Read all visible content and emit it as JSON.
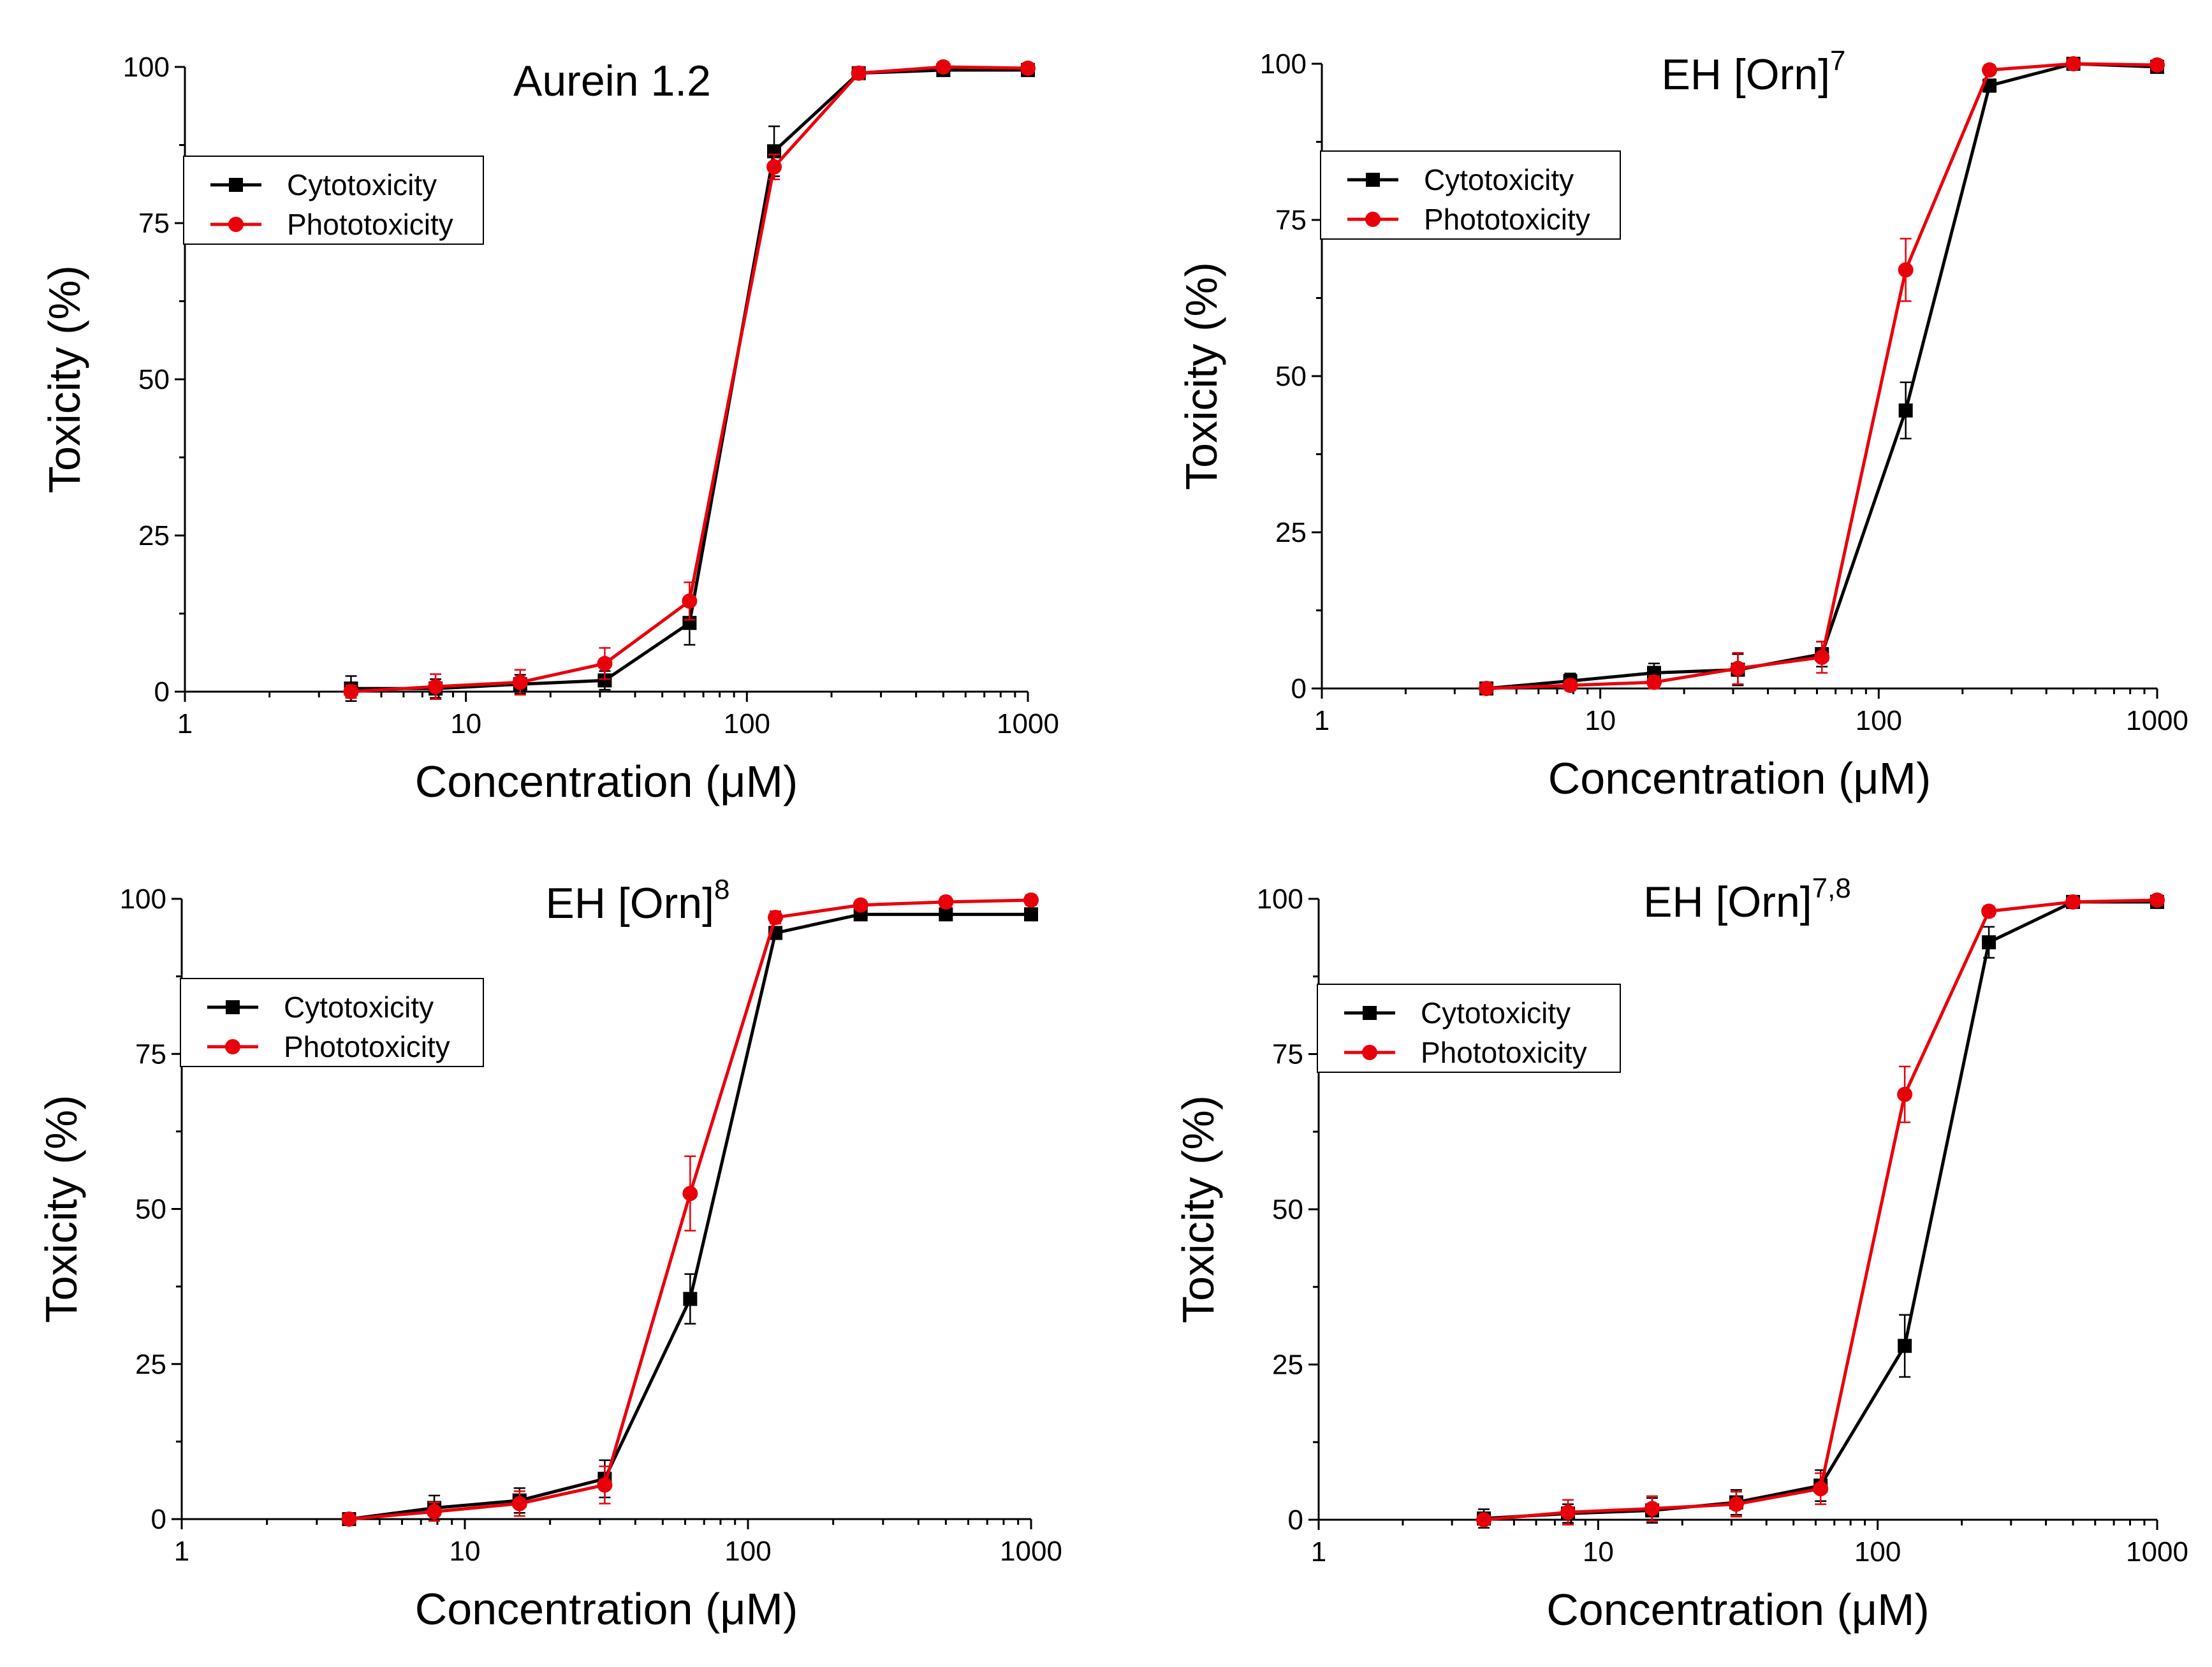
{
  "colors": {
    "cytotoxicity": "#000000",
    "phototoxicity": "#e8000b"
  },
  "chart_data": [
    {
      "type": "line",
      "title": "Aurein 1.2",
      "title_sup": "",
      "xlabel": "Concentration (μM)",
      "ylabel": "Toxicity (%)",
      "xscale": "log",
      "xlim": [
        1,
        1000
      ],
      "ylim": [
        0,
        100
      ],
      "xticks": [
        1,
        10,
        100,
        1000
      ],
      "xtick_labels": [
        "1",
        "10",
        "100",
        "1000"
      ],
      "yticks": [
        0,
        25,
        50,
        75,
        100
      ],
      "ytick_labels": [
        "0",
        "25",
        "50",
        "75",
        "100"
      ],
      "legend_position": "top-left",
      "x": [
        3.9,
        7.8,
        15.6,
        31.2,
        62.5,
        125,
        250,
        500,
        1000
      ],
      "series": [
        {
          "name": "Cytotoxicity",
          "marker": "square",
          "values": [
            0.5,
            0.5,
            1.2,
            1.8,
            11,
            86.5,
            99,
            99.5,
            99.5
          ],
          "errors": [
            2,
            1.5,
            1.5,
            1.5,
            3.5,
            4,
            1,
            0.8,
            0.8
          ]
        },
        {
          "name": "Phototoxicity",
          "marker": "circle",
          "values": [
            0,
            0.8,
            1.5,
            4.5,
            14.5,
            84,
            99,
            100,
            99.8
          ],
          "errors": [
            1,
            2,
            2,
            2.5,
            3,
            2,
            1,
            0.8,
            0.8
          ]
        }
      ]
    },
    {
      "type": "line",
      "title": "EH [Orn]",
      "title_sup": "7",
      "xlabel": "Concentration (μM)",
      "ylabel": "Toxicity (%)",
      "xscale": "log",
      "xlim": [
        1,
        1000
      ],
      "ylim": [
        0,
        100
      ],
      "xticks": [
        1,
        10,
        100,
        1000
      ],
      "xtick_labels": [
        "1",
        "10",
        "100",
        "1000"
      ],
      "yticks": [
        0,
        25,
        50,
        75,
        100
      ],
      "ytick_labels": [
        "0",
        "25",
        "50",
        "75",
        "100"
      ],
      "legend_position": "top-left",
      "x": [
        3.9,
        7.8,
        15.6,
        31.2,
        62.5,
        125,
        250,
        500,
        1000
      ],
      "series": [
        {
          "name": "Cytotoxicity",
          "marker": "square",
          "values": [
            0,
            1.2,
            2.5,
            3,
            5.5,
            44.5,
            96.5,
            100,
            99.5
          ],
          "errors": [
            0.5,
            1.2,
            1.5,
            2.5,
            2,
            4.5,
            1,
            0.8,
            0.8
          ]
        },
        {
          "name": "Phototoxicity",
          "marker": "circle",
          "values": [
            0,
            0.5,
            1,
            3.2,
            5,
            67,
            99,
            100,
            99.8
          ],
          "errors": [
            0.5,
            0.8,
            1,
            2.5,
            2.5,
            5,
            0.8,
            0.8,
            0.8
          ]
        }
      ]
    },
    {
      "type": "line",
      "title": "EH [Orn]",
      "title_sup": "8",
      "xlabel": "Concentration (μM)",
      "ylabel": "Toxicity (%)",
      "xscale": "log",
      "xlim": [
        1,
        1000
      ],
      "ylim": [
        0,
        100
      ],
      "xticks": [
        1,
        10,
        100,
        1000
      ],
      "xtick_labels": [
        "1",
        "10",
        "100",
        "1000"
      ],
      "yticks": [
        0,
        25,
        50,
        75,
        100
      ],
      "ytick_labels": [
        "0",
        "25",
        "50",
        "75",
        "100"
      ],
      "legend_position": "top-left",
      "x": [
        3.9,
        7.8,
        15.6,
        31.2,
        62.5,
        125,
        250,
        500,
        1000
      ],
      "series": [
        {
          "name": "Cytotoxicity",
          "marker": "square",
          "values": [
            0,
            1.8,
            3,
            6.5,
            35.5,
            94.5,
            97.5,
            97.5,
            97.5
          ],
          "errors": [
            0.5,
            2,
            2,
            3,
            4,
            1,
            0.8,
            0.8,
            0.8
          ]
        },
        {
          "name": "Phototoxicity",
          "marker": "circle",
          "values": [
            0,
            1.2,
            2.5,
            5.5,
            52.5,
            97,
            99,
            99.5,
            99.8
          ],
          "errors": [
            0.5,
            1.5,
            2,
            3,
            6,
            1,
            0.8,
            0.8,
            0.8
          ]
        }
      ]
    },
    {
      "type": "line",
      "title": "EH [Orn]",
      "title_sup": "7,8",
      "xlabel": "Concentration (μM)",
      "ylabel": "Toxicity (%)",
      "xscale": "log",
      "xlim": [
        1,
        1000
      ],
      "ylim": [
        0,
        100
      ],
      "xticks": [
        1,
        10,
        100,
        1000
      ],
      "xtick_labels": [
        "1",
        "10",
        "100",
        "1000"
      ],
      "yticks": [
        0,
        25,
        50,
        75,
        100
      ],
      "ytick_labels": [
        "0",
        "25",
        "50",
        "75",
        "100"
      ],
      "legend_position": "top-left",
      "x": [
        3.9,
        7.8,
        15.6,
        31.2,
        62.5,
        125,
        250,
        500,
        1000
      ],
      "series": [
        {
          "name": "Cytotoxicity",
          "marker": "square",
          "values": [
            0.2,
            1,
            1.5,
            2.8,
            5.5,
            28,
            93,
            99.5,
            99.5
          ],
          "errors": [
            1.5,
            1.5,
            2,
            2,
            2.5,
            5,
            2.5,
            0.8,
            0.8
          ]
        },
        {
          "name": "Phototoxicity",
          "marker": "circle",
          "values": [
            0,
            1.2,
            1.8,
            2.5,
            5,
            68.5,
            98,
            99.5,
            99.8
          ],
          "errors": [
            0.5,
            2,
            2,
            2,
            2.5,
            4.5,
            0.8,
            0.8,
            0.8
          ]
        }
      ]
    }
  ]
}
